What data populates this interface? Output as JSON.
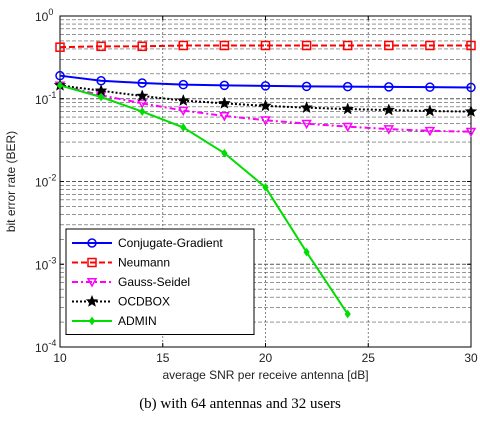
{
  "chart_data": {
    "type": "line",
    "xlabel": "average SNR per receive antenna [dB]",
    "ylabel": "bit error rate (BER)",
    "xlim": [
      10,
      30
    ],
    "ylim": [
      0.0001,
      1
    ],
    "yscale": "log",
    "grid": true,
    "legend_position": "bottom-left",
    "x_ticks": [
      "10",
      "15",
      "20",
      "25",
      "30"
    ],
    "y_ticks": [
      {
        "base": "10",
        "exp": "0"
      },
      {
        "base": "10",
        "exp": "-1"
      },
      {
        "base": "10",
        "exp": "-2"
      },
      {
        "base": "10",
        "exp": "-3"
      },
      {
        "base": "10",
        "exp": "-4"
      }
    ],
    "series": [
      {
        "name": "Conjugate-Gradient",
        "color": "#0000ff",
        "dash": "solid",
        "marker": "circle",
        "x": [
          10,
          12,
          14,
          16,
          18,
          20,
          22,
          24,
          26,
          28,
          30
        ],
        "y": [
          0.19,
          0.165,
          0.155,
          0.148,
          0.145,
          0.143,
          0.141,
          0.14,
          0.139,
          0.138,
          0.137
        ]
      },
      {
        "name": "Neumann",
        "color": "#ff0000",
        "dash": "dashed",
        "marker": "square",
        "x": [
          10,
          12,
          14,
          16,
          18,
          20,
          22,
          24,
          26,
          28,
          30
        ],
        "y": [
          0.42,
          0.43,
          0.43,
          0.44,
          0.44,
          0.44,
          0.44,
          0.44,
          0.44,
          0.44,
          0.44
        ]
      },
      {
        "name": "Gauss-Seidel",
        "color": "#ff00ff",
        "dash": "dashdot",
        "marker": "triangle-down",
        "x": [
          10,
          12,
          14,
          16,
          18,
          20,
          22,
          24,
          26,
          28,
          30
        ],
        "y": [
          0.145,
          0.11,
          0.088,
          0.072,
          0.062,
          0.055,
          0.05,
          0.046,
          0.043,
          0.041,
          0.04
        ]
      },
      {
        "name": "OCDBOX",
        "color": "#000000",
        "dash": "dotted",
        "marker": "star",
        "x": [
          10,
          12,
          14,
          16,
          18,
          20,
          22,
          24,
          26,
          28,
          30
        ],
        "y": [
          0.145,
          0.125,
          0.108,
          0.095,
          0.088,
          0.082,
          0.078,
          0.075,
          0.073,
          0.071,
          0.07
        ]
      },
      {
        "name": "ADMIN",
        "color": "#00dd00",
        "dash": "solid",
        "marker": "diamond",
        "x": [
          10,
          12,
          14,
          16,
          18,
          20,
          22,
          24
        ],
        "y": [
          0.145,
          0.105,
          0.07,
          0.045,
          0.022,
          0.0085,
          0.0014,
          0.00025
        ]
      }
    ]
  },
  "caption": "(b) with 64 antennas and 32 users"
}
